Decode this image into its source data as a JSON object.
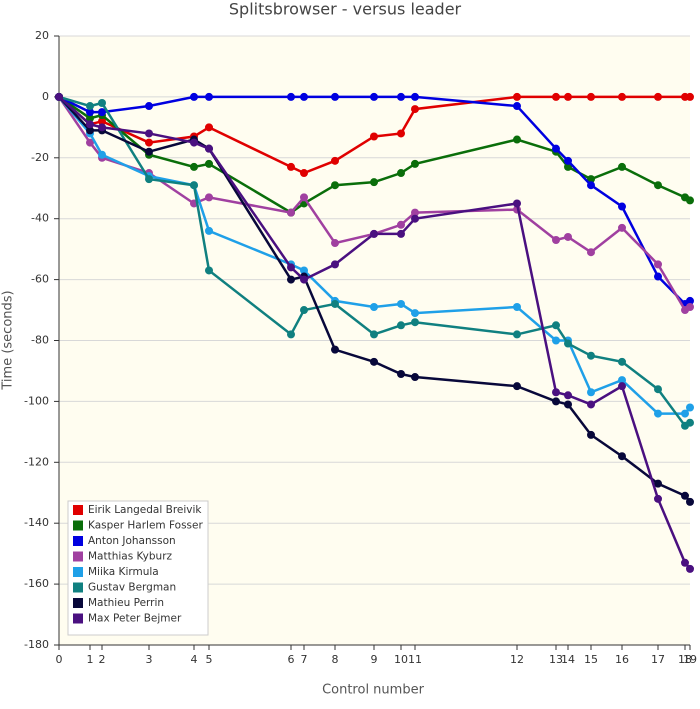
{
  "chart_data": {
    "type": "line",
    "title": "Splitsbrowser - versus leader",
    "x_label": "Control number",
    "y_label": "Time (seconds)",
    "x": [
      0,
      31,
      43,
      90,
      135,
      150,
      232,
      245,
      276,
      315,
      342,
      356,
      458,
      497,
      509,
      532,
      563,
      599,
      626,
      631
    ],
    "xlim": [
      0,
      631
    ],
    "xticks": [
      0,
      {
        "value": 31,
        "label": "1"
      },
      {
        "value": 43,
        "label": "2"
      },
      {
        "value": 90,
        "label": "3"
      },
      {
        "value": 135,
        "label": "4"
      },
      {
        "value": 150,
        "label": "5"
      },
      {
        "value": 232,
        "label": "6"
      },
      {
        "value": 245,
        "label": "7"
      },
      {
        "value": 276,
        "label": "8"
      },
      {
        "value": 315,
        "label": "9"
      },
      {
        "value": 342,
        "label": "10"
      },
      {
        "value": 356,
        "label": "11"
      },
      {
        "value": 458,
        "label": "12"
      },
      {
        "value": 497,
        "label": "13"
      },
      {
        "value": 509,
        "label": "14"
      },
      {
        "value": 532,
        "label": "15"
      },
      {
        "value": 563,
        "label": "16"
      },
      {
        "value": 599,
        "label": "17"
      },
      {
        "value": 626,
        "label": "18"
      },
      {
        "value": 631,
        "label": "19"
      }
    ],
    "ylim": [
      -180,
      20
    ],
    "yticks": [
      20,
      0,
      -20,
      -40,
      -60,
      -80,
      -100,
      -120,
      -140,
      -160,
      -180
    ],
    "grid": true,
    "legend": "lower left",
    "series": [
      {
        "name": "Eirik Langedal Breivik",
        "color": "#e00000",
        "values": [
          0,
          -9,
          -8,
          -15,
          -13,
          -10,
          -23,
          -25,
          -21,
          -13,
          -12,
          -4,
          0,
          0,
          0,
          0,
          0,
          0,
          0,
          0
        ]
      },
      {
        "name": "Kasper Harlem Fosser",
        "color": "#0a6e0a",
        "values": [
          0,
          -7,
          -6,
          -19,
          -23,
          -22,
          -38,
          -35,
          -29,
          -28,
          -25,
          -22,
          -14,
          -18,
          -23,
          -27,
          -23,
          -29,
          -33,
          -34
        ]
      },
      {
        "name": "Anton Johansson",
        "color": "#0000e0",
        "values": [
          0,
          -5,
          -5,
          -3,
          0,
          0,
          0,
          0,
          0,
          0,
          0,
          0,
          -3,
          -17,
          -21,
          -29,
          -36,
          -59,
          -68,
          -67
        ]
      },
      {
        "name": "Matthias Kyburz",
        "color": "#a040a0",
        "values": [
          0,
          -15,
          -20,
          -25,
          -35,
          -33,
          -38,
          -33,
          -48,
          -45,
          -42,
          -38,
          -37,
          -47,
          -46,
          -51,
          -43,
          -55,
          -70,
          -69
        ]
      },
      {
        "name": "Miika Kirmula",
        "color": "#1fa0e8",
        "values": [
          0,
          -12,
          -19,
          -26,
          -29,
          -44,
          -55,
          -57,
          -67,
          -69,
          -68,
          -71,
          -69,
          -80,
          -80,
          -97,
          -93,
          -104,
          -104,
          -102
        ]
      },
      {
        "name": "Gustav Bergman",
        "color": "#108080",
        "values": [
          0,
          -3,
          -2,
          -27,
          -29,
          -57,
          -78,
          -70,
          -68,
          -78,
          -75,
          -74,
          -78,
          -75,
          -81,
          -85,
          -87,
          -96,
          -108,
          -107
        ]
      },
      {
        "name": "Mathieu Perrin",
        "color": "#08083a",
        "values": [
          0,
          -11,
          -11,
          -18,
          -14,
          -17,
          -60,
          -59,
          -83,
          -87,
          -91,
          -92,
          -95,
          -100,
          -101,
          -111,
          -118,
          -127,
          -131,
          -133
        ]
      },
      {
        "name": "Max Peter Bejmer",
        "color": "#4a1080",
        "values": [
          0,
          -9,
          -10,
          -12,
          -15,
          -17,
          -56,
          -60,
          -55,
          -45,
          -45,
          -40,
          -35,
          -97,
          -98,
          -101,
          -95,
          -132,
          -153,
          -155
        ]
      }
    ]
  }
}
